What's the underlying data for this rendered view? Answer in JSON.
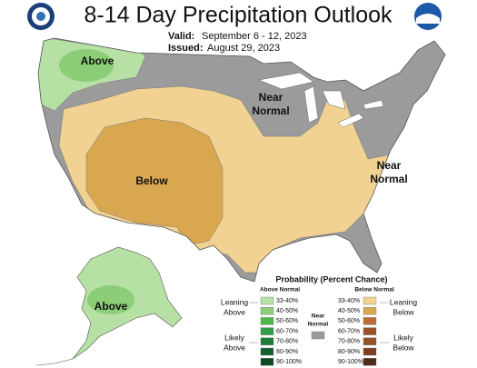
{
  "header": {
    "title": "8-14 Day Precipitation Outlook",
    "valid_label": "Valid:",
    "valid": "September 6 - 12, 2023",
    "issued_label": "Issued:",
    "issued": "August 29, 2023"
  },
  "map_labels": [
    {
      "lines": [
        "Above"
      ]
    },
    {
      "lines": [
        "Near",
        "Normal"
      ]
    },
    {
      "lines": [
        "Below"
      ]
    },
    {
      "lines": [
        "Near",
        "Normal"
      ]
    },
    {
      "lines": [
        "Above"
      ]
    }
  ],
  "legend": {
    "title": "Probability (Percent Chance)",
    "above": {
      "header": "Above Normal",
      "rows": [
        "33-40%",
        "40-50%",
        "50-60%",
        "60-70%",
        "70-80%",
        "80-90%",
        "90-100%"
      ]
    },
    "below": {
      "header": "Below Normal",
      "rows": [
        "33-40%",
        "40-50%",
        "50-60%",
        "60-70%",
        "70-80%",
        "80-90%",
        "90-100%"
      ]
    },
    "near": {
      "lines": [
        "Near",
        "Normal"
      ]
    },
    "groups": {
      "leaning_above": [
        "Leaning",
        "Above"
      ],
      "likely_above": [
        "Likely",
        "Above"
      ],
      "leaning_below": [
        "Leaning",
        "Below"
      ],
      "likely_below": [
        "Likely",
        "Below"
      ]
    }
  }
}
